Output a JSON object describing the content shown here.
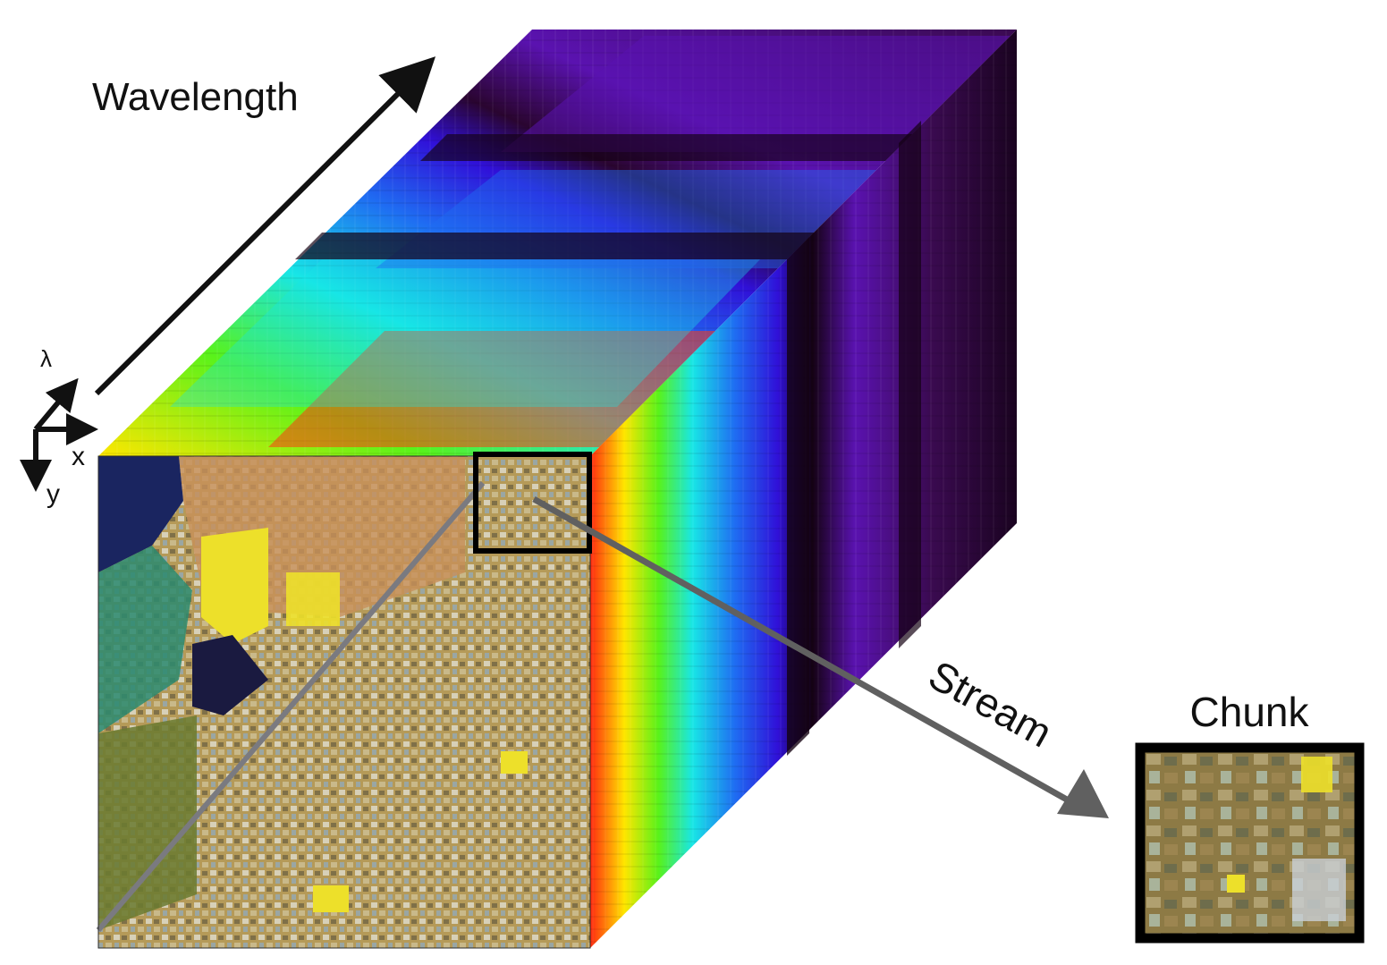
{
  "labels": {
    "wavelength": "Wavelength",
    "stream": "Stream",
    "chunk": "Chunk",
    "axis_lambda": "λ",
    "axis_x": "x",
    "axis_y": "y"
  },
  "colors": {
    "background": "#ffffff",
    "arrow_main": "#111111",
    "arrow_stream": "#606060",
    "chunk_frame": "#000000",
    "spectrum": [
      "#ff2a10",
      "#ffe600",
      "#59f21a",
      "#18e6e6",
      "#1f6cf2",
      "#3010d8",
      "#5a12b0",
      "#2a0530",
      "#140212"
    ],
    "terrain": [
      "#b59a58",
      "#7f7048",
      "#c9b98a",
      "#9aa6a3",
      "#6e6d4c",
      "#d7d0b8",
      "#8d6a3f"
    ],
    "water": "#1a2560",
    "salt_ponds": "#ede02a"
  },
  "icons": {
    "axis_widget": "axes-icon",
    "wavelength_arrow": "arrow-icon",
    "stream_arrow": "arrow-icon"
  }
}
